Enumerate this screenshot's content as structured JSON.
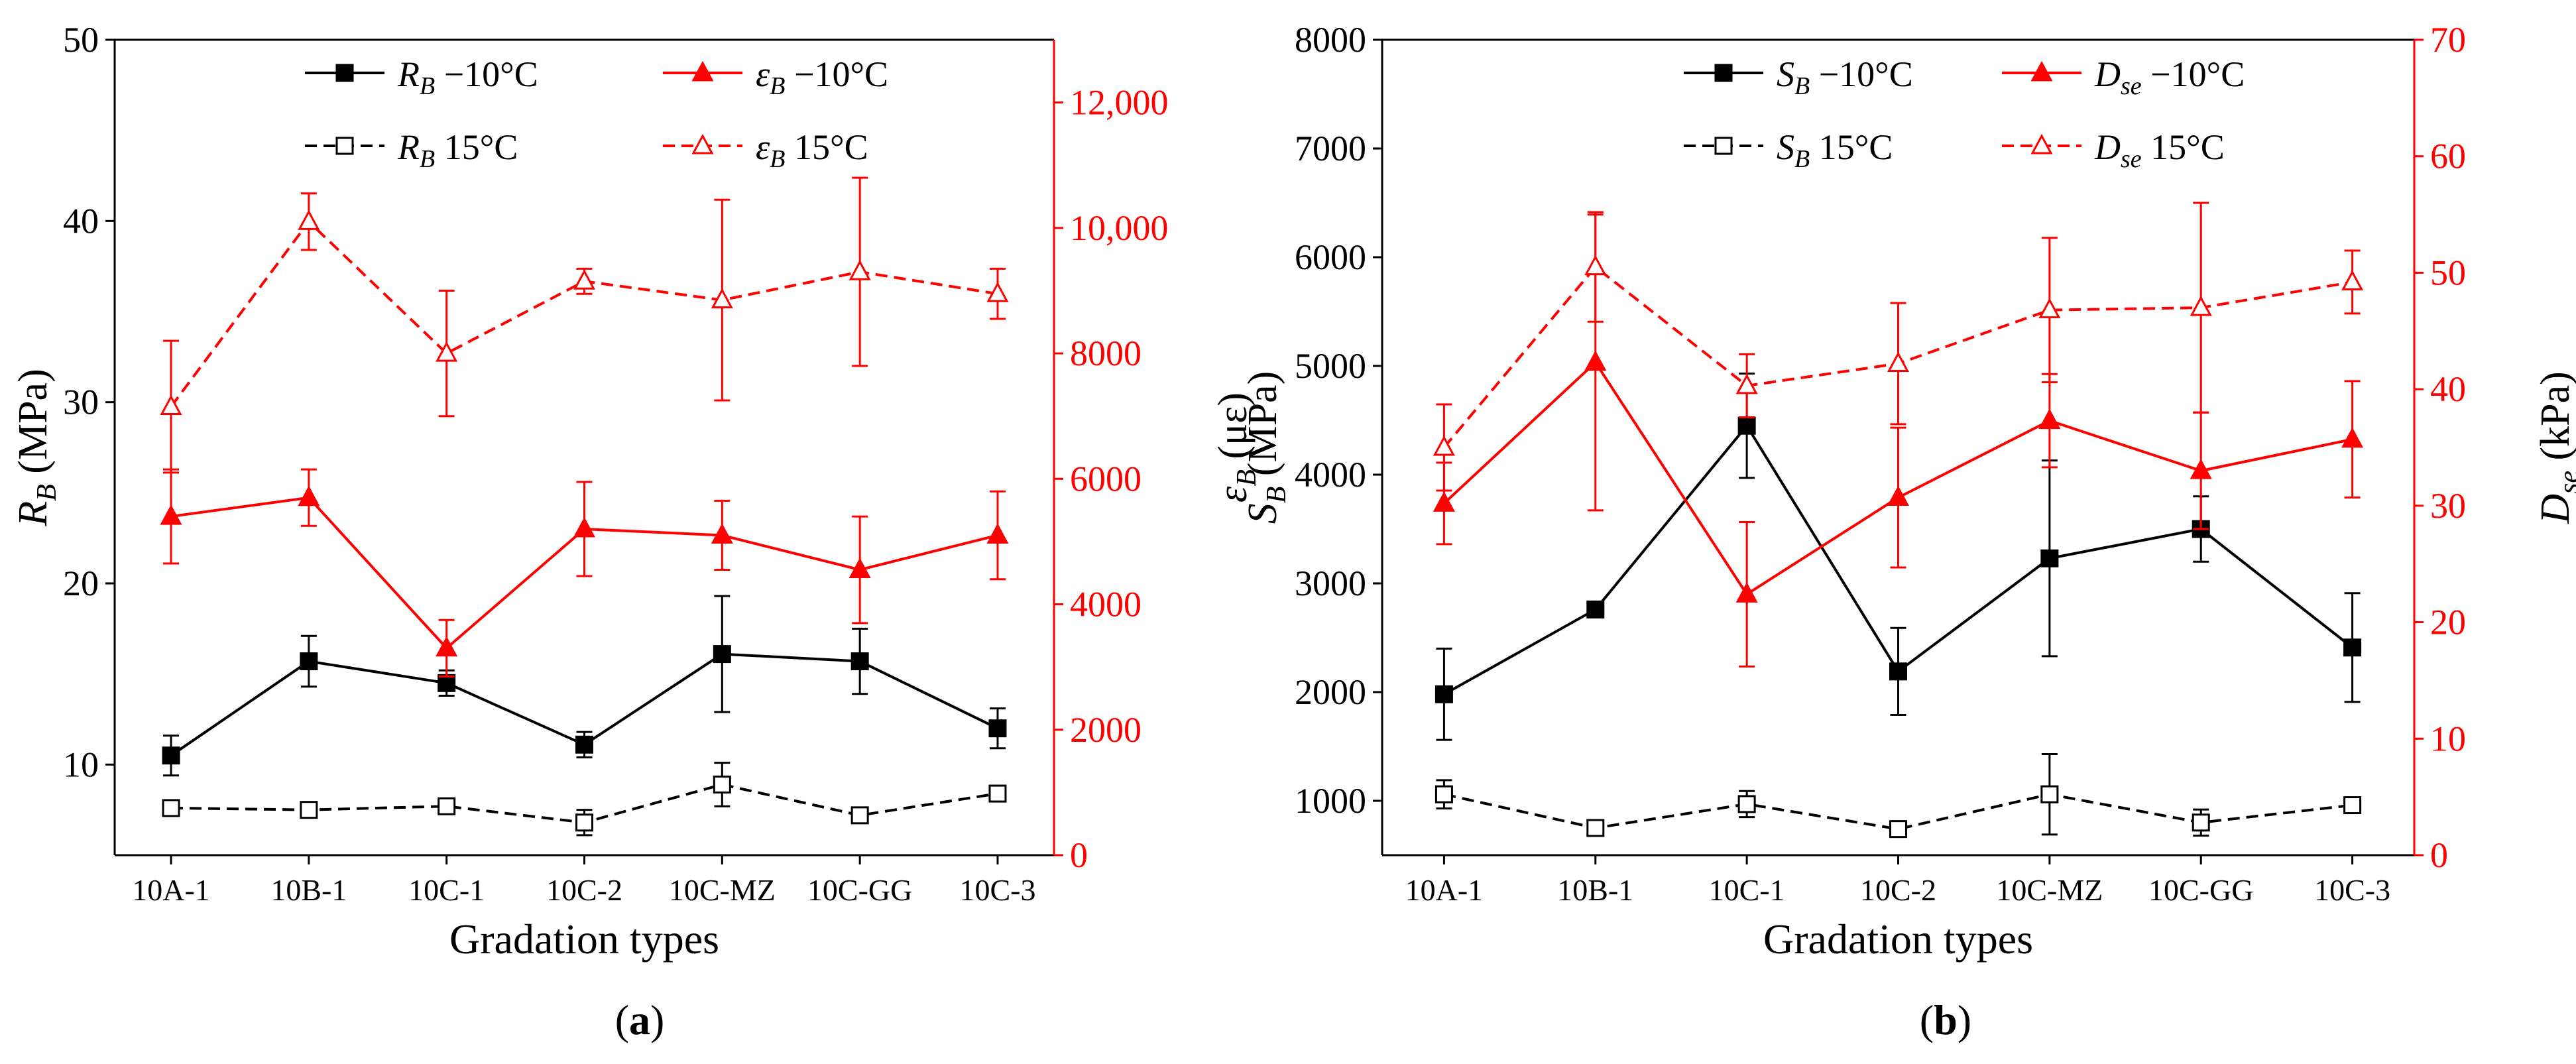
{
  "colors": {
    "black": "#000000",
    "red": "#ff0000"
  },
  "chart_data": [
    {
      "type": "line",
      "panel_label": "a",
      "xlabel": "Gradation types",
      "categories": [
        "10A-1",
        "10B-1",
        "10C-1",
        "10C-2",
        "10C-MZ",
        "10C-GG",
        "10C-3"
      ],
      "y_left": {
        "label_main": "R",
        "label_sub": "B",
        "label_unit": " (MPa)",
        "ylim": [
          5,
          50
        ],
        "ticks": [
          10,
          20,
          30,
          40,
          50
        ],
        "tick_labels": [
          "10",
          "20",
          "30",
          "40",
          "50"
        ]
      },
      "y_right": {
        "label_main": "ε",
        "label_sub": "B",
        "label_unit": " (με)",
        "ylim": [
          0,
          13000
        ],
        "ticks": [
          0,
          2000,
          4000,
          6000,
          8000,
          10000,
          12000
        ],
        "tick_labels": [
          "0",
          "2000",
          "4000",
          "6000",
          "8000",
          "10,000",
          "12,000"
        ]
      },
      "legend_position": "top",
      "series": [
        {
          "name_main": "R",
          "name_sub": "B",
          "name_rest": " −10°C",
          "axis": "left",
          "color": "#000000",
          "dash": "solid",
          "marker": "square-filled",
          "values": [
            10.5,
            15.7,
            14.5,
            11.1,
            16.1,
            15.7,
            12.0
          ],
          "errors": [
            1.1,
            1.4,
            0.7,
            0.7,
            3.2,
            1.8,
            1.1
          ]
        },
        {
          "name_main": "ε",
          "name_sub": "B",
          "name_rest": " −10°C",
          "axis": "right",
          "color": "#ff0000",
          "dash": "solid",
          "marker": "triangle-filled",
          "values": [
            5400,
            5700,
            3300,
            5200,
            5100,
            4550,
            5100
          ],
          "errors": [
            750,
            450,
            450,
            750,
            550,
            850,
            700
          ]
        },
        {
          "name_main": "R",
          "name_sub": "B",
          "name_rest": " 15°C",
          "axis": "left",
          "color": "#000000",
          "dash": "dashed",
          "marker": "square-open",
          "values": [
            7.6,
            7.5,
            7.7,
            6.8,
            8.9,
            7.2,
            8.4
          ],
          "errors": [
            0.4,
            0.2,
            0.3,
            0.7,
            1.2,
            0.4,
            0.2
          ]
        },
        {
          "name_main": "ε",
          "name_sub": "B",
          "name_rest": " 15°C",
          "axis": "right",
          "color": "#ff0000",
          "dash": "dashed",
          "marker": "triangle-open",
          "values": [
            7150,
            10100,
            8000,
            9150,
            8850,
            9300,
            8950
          ],
          "errors": [
            1050,
            450,
            1000,
            200,
            1600,
            1500,
            400
          ]
        }
      ]
    },
    {
      "type": "line",
      "panel_label": "b",
      "xlabel": "Gradation types",
      "categories": [
        "10A-1",
        "10B-1",
        "10C-1",
        "10C-2",
        "10C-MZ",
        "10C-GG",
        "10C-3"
      ],
      "y_left": {
        "label_main": "S",
        "label_sub": "B",
        "label_unit": " (MPa)",
        "ylim": [
          500,
          8000
        ],
        "ticks": [
          1000,
          2000,
          3000,
          4000,
          5000,
          6000,
          7000,
          8000
        ],
        "tick_labels": [
          "1000",
          "2000",
          "3000",
          "4000",
          "5000",
          "6000",
          "7000",
          "8000"
        ]
      },
      "y_right": {
        "label_main": "D",
        "label_sub": "se",
        "label_unit": " (kPa)",
        "ylim": [
          0,
          70
        ],
        "ticks": [
          0,
          10,
          20,
          30,
          40,
          50,
          60,
          70
        ],
        "tick_labels": [
          "0",
          "10",
          "20",
          "30",
          "40",
          "50",
          "60",
          "70"
        ]
      },
      "legend_position": "top",
      "series": [
        {
          "name_main": "S",
          "name_sub": "B",
          "name_rest": " −10°C",
          "axis": "left",
          "color": "#000000",
          "dash": "solid",
          "marker": "square-filled",
          "values": [
            1980,
            2760,
            4450,
            2190,
            3230,
            3500,
            2410
          ],
          "errors": [
            420,
            60,
            480,
            400,
            900,
            300,
            500
          ]
        },
        {
          "name_main": "D",
          "name_sub": "se",
          "name_rest": " −10°C",
          "axis": "right",
          "color": "#ff0000",
          "dash": "solid",
          "marker": "triangle-filled",
          "values": [
            30.2,
            42.3,
            22.4,
            30.7,
            37.3,
            33.0,
            35.7
          ],
          "errors": [
            3.5,
            12.7,
            6.2,
            6.0,
            4.0,
            5.0,
            5.0
          ]
        },
        {
          "name_main": "S",
          "name_sub": "B",
          "name_rest": " 15°C",
          "axis": "left",
          "color": "#000000",
          "dash": "dashed",
          "marker": "square-open",
          "values": [
            1060,
            750,
            970,
            740,
            1060,
            800,
            960
          ],
          "errors": [
            130,
            40,
            120,
            50,
            370,
            120,
            60
          ]
        },
        {
          "name_main": "D",
          "name_sub": "se",
          "name_rest": " 15°C",
          "axis": "right",
          "color": "#ff0000",
          "dash": "dashed",
          "marker": "triangle-open",
          "values": [
            35.0,
            50.5,
            40.3,
            42.2,
            46.8,
            47.0,
            49.2
          ],
          "errors": [
            3.7,
            4.7,
            2.7,
            5.2,
            6.2,
            9.0,
            2.7
          ]
        }
      ]
    }
  ]
}
